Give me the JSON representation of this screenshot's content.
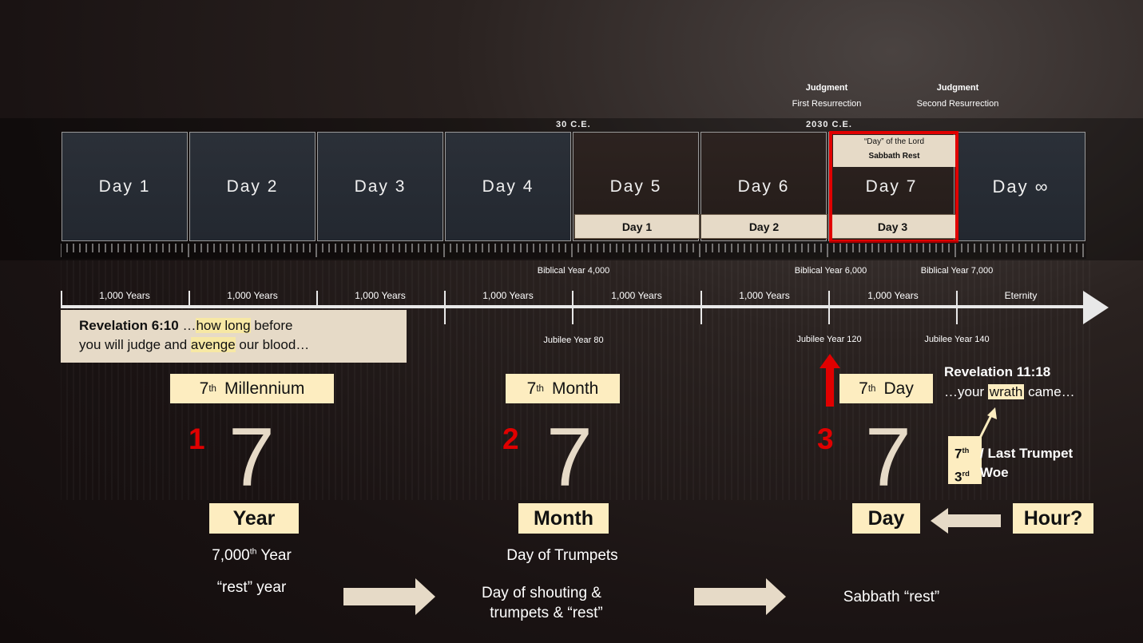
{
  "events": {
    "first": {
      "title": "Judgment",
      "subtitle": "First Resurrection"
    },
    "second": {
      "title": "Judgment",
      "subtitle": "Second Resurrection"
    }
  },
  "markers": {
    "ce30": "30 C.E.",
    "ce2030": "2030 C.E."
  },
  "days": [
    "Day 1",
    "Day 2",
    "Day 3",
    "Day 4",
    "Day 5",
    "Day 6",
    "Day 7",
    "Day ∞"
  ],
  "sub_days": [
    "Day 1",
    "Day 2",
    "Day 3"
  ],
  "day7_note": {
    "line1": "“Day” of the Lord",
    "line2": "Sabbath Rest"
  },
  "biblical_years": {
    "y4000": "Biblical Year 4,000",
    "y6000": "Biblical Year 6,000",
    "y7000": "Biblical Year 7,000"
  },
  "period_labels": [
    "1,000 Years",
    "1,000 Years",
    "1,000 Years",
    "1,000 Years",
    "1,000 Years",
    "1,000 Years",
    "1,000 Years",
    "Eternity"
  ],
  "jubilee": {
    "j80": "Jubilee Year 80",
    "j120": "Jubilee Year 120",
    "j140": "Jubilee Year 140"
  },
  "rev6": {
    "ref": "Revelation 6:10",
    "t1": " …",
    "h1": "how long",
    "t2": " before",
    "t3": "you will judge and ",
    "h2": "avenge",
    "t4": " our blood…"
  },
  "columns": [
    {
      "number": "1",
      "seven": "7",
      "label_pre": "7",
      "label_sup": "th",
      "label_post": "Millennium",
      "unit": "Year",
      "cap1_pre": "7,000",
      "cap1_sup": "th",
      "cap1_post": " Year",
      "cap2": "“rest” year"
    },
    {
      "number": "2",
      "seven": "7",
      "label_pre": "7",
      "label_sup": "th",
      "label_post": "Month",
      "unit": "Month",
      "cap1": "Day of Trumpets",
      "cap2a": "Day of shouting &",
      "cap2b": "trumpets & “rest”"
    },
    {
      "number": "3",
      "seven": "7",
      "label_pre": "7",
      "label_sup": "th",
      "label_post": "Day",
      "unit": "Day",
      "cap2": "Sabbath “rest”"
    }
  ],
  "rev11": {
    "ref": "Revelation 11:18",
    "pre": "…your ",
    "hl": "wrath",
    "post": " came…"
  },
  "trumpet": {
    "n1": "7",
    "s1": "th",
    "n2": "3",
    "s2": "rd",
    "t1": "/ Last Trumpet",
    "t2": "Woe"
  },
  "hour": "Hour?",
  "colors": {
    "accent_red": "#e00000",
    "cream": "#e6dac7",
    "highlight": "#fdedc0"
  }
}
